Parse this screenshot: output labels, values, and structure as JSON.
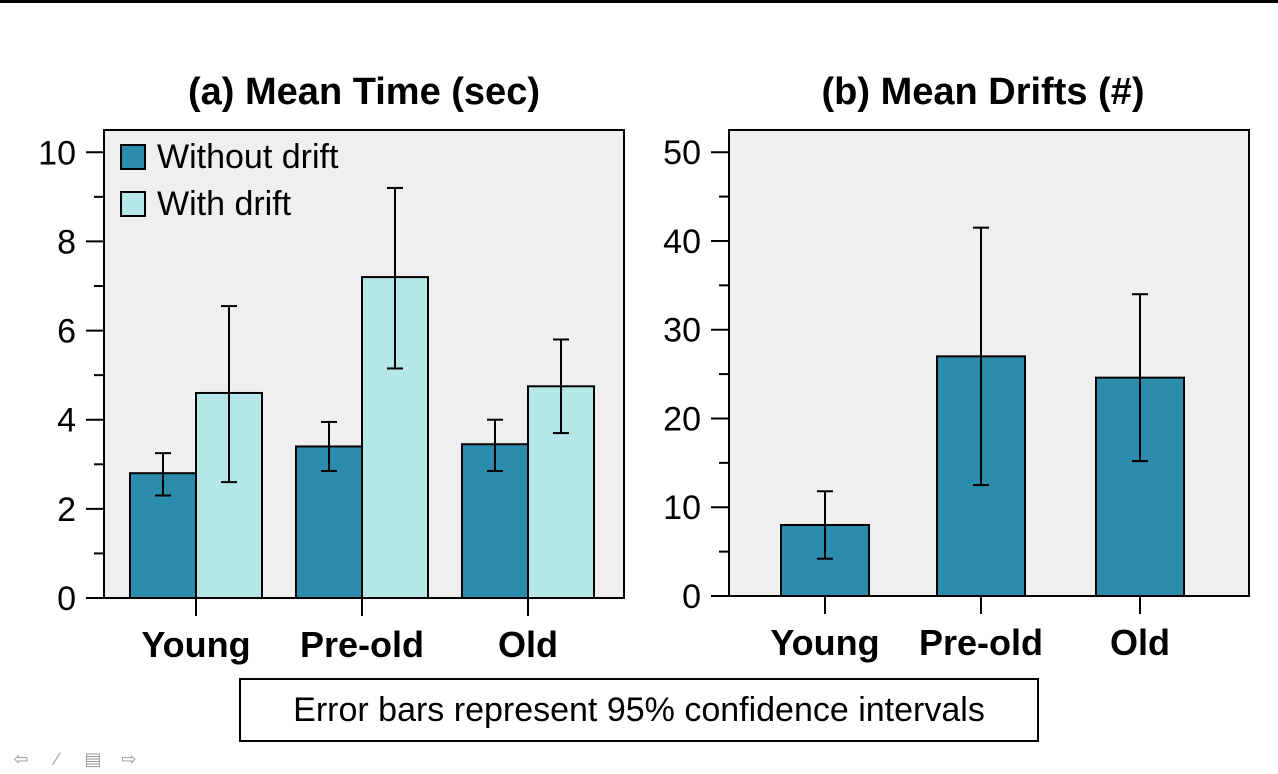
{
  "chart_data": [
    {
      "type": "bar",
      "title": "(a) Mean Time (sec)",
      "categories": [
        "Young",
        "Pre-old",
        "Old"
      ],
      "series": [
        {
          "name": "Without drift",
          "values": [
            2.8,
            3.4,
            3.45
          ],
          "ci_low": [
            2.3,
            2.85,
            2.85
          ],
          "ci_high": [
            3.25,
            3.95,
            4.0
          ]
        },
        {
          "name": "With drift",
          "values": [
            4.6,
            7.2,
            4.75
          ],
          "ci_low": [
            2.6,
            5.15,
            3.7
          ],
          "ci_high": [
            6.55,
            9.2,
            5.8
          ]
        }
      ],
      "ylim": [
        0,
        10.5
      ],
      "yticks": [
        0,
        2,
        4,
        6,
        8,
        10
      ],
      "yticks_minor": [
        1,
        3,
        5,
        7,
        9
      ],
      "legend": "top-left",
      "grid": false
    },
    {
      "type": "bar",
      "title": "(b) Mean Drifts (#)",
      "categories": [
        "Young",
        "Pre-old",
        "Old"
      ],
      "series": [
        {
          "values": [
            8.0,
            27.0,
            24.6
          ],
          "ci_low": [
            4.2,
            12.5,
            15.2
          ],
          "ci_high": [
            11.8,
            41.5,
            34.0
          ]
        }
      ],
      "ylim": [
        0,
        52.5
      ],
      "yticks": [
        0,
        10,
        20,
        30,
        40,
        50
      ],
      "yticks_minor": [
        5,
        15,
        25,
        35,
        45
      ],
      "grid": false
    }
  ],
  "footnote": "Error bars represent 95% confidence intervals",
  "colors": {
    "without_drift": "#2b8cac",
    "with_drift": "#b5e6e8",
    "plot_background": "#efefef"
  },
  "navigation": {
    "icons": [
      "arrow-left-icon",
      "pen-icon",
      "menu-icon",
      "arrow-right-icon"
    ]
  }
}
